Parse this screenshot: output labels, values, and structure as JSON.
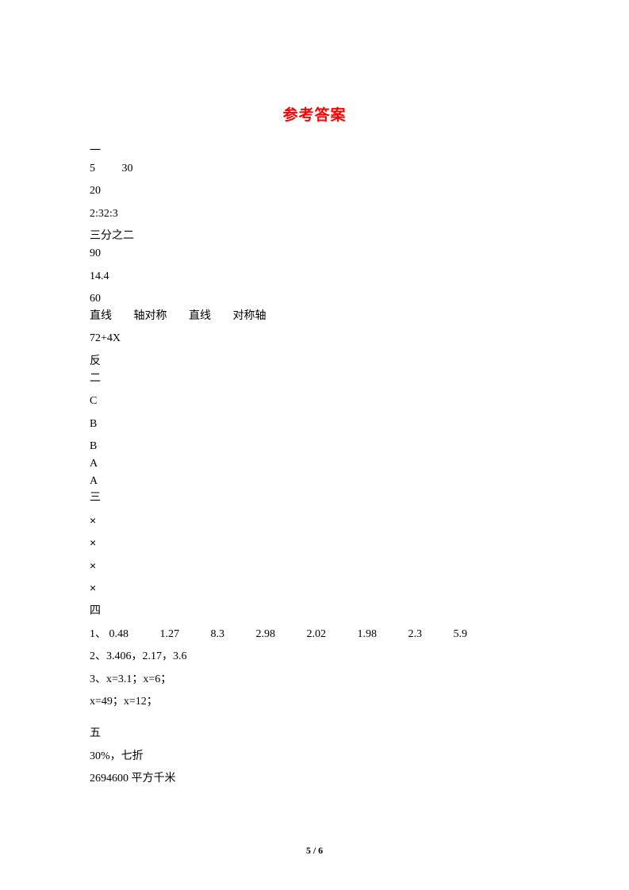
{
  "title": "参考答案",
  "s1": {
    "h": "一",
    "l1a": "5",
    "l1b": "30",
    "l2": "20",
    "l3": "2:32:3",
    "l4": "三分之二",
    "l5": "90",
    "l6": "14.4",
    "l7": "60",
    "l8a": "直线",
    "l8b": "轴对称",
    "l8c": "直线",
    "l8d": "对称轴",
    "l9": "72+4X",
    "l10": "反"
  },
  "s2": {
    "h": "二",
    "a1": "C",
    "a2": "B",
    "a3": "B",
    "a4": "A",
    "a5": "A"
  },
  "s3": {
    "h": "三",
    "a1": "×",
    "a2": "×",
    "a3": "×",
    "a4": "×"
  },
  "s4": {
    "h": "四",
    "l1": {
      "p": "1、",
      "v": [
        "0.48",
        "1.27",
        "8.3",
        "2.98",
        "2.02",
        "1.98",
        "2.3",
        "5.9"
      ]
    },
    "l2": "2、3.406，2.17，3.6",
    "l3": "3、x=3.1；x=6；",
    "l4": "x=49；x=12；"
  },
  "s5": {
    "h": "五",
    "l1": "30%，七折",
    "l2": "2694600 平方千米"
  },
  "pagenum": "5 / 6"
}
